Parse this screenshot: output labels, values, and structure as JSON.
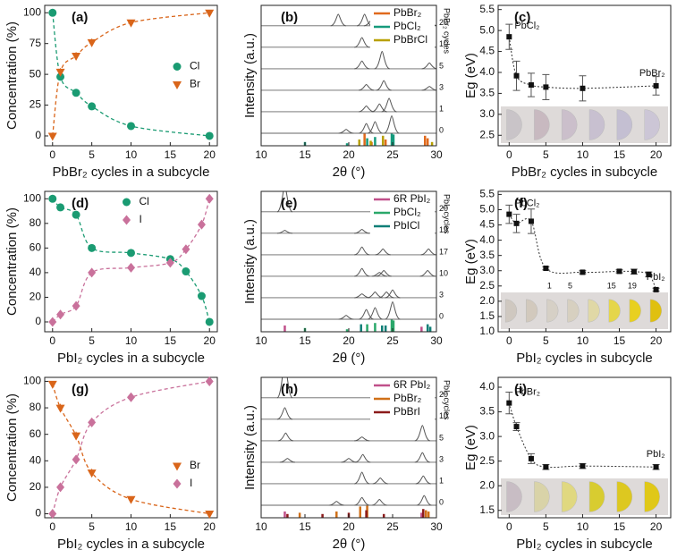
{
  "chart_data": [
    {
      "type": "scatter",
      "label": "(a)",
      "xlabel": "PbBr₂ cycles in a subcycle",
      "ylabel": "Concentration (%)",
      "x": [
        0,
        1,
        3,
        5,
        10,
        20
      ],
      "xlim": [
        -1,
        21
      ],
      "xticks": [
        0,
        5,
        10,
        15,
        20
      ],
      "ylim": [
        -8,
        106
      ],
      "yticks": [
        0,
        25,
        50,
        75,
        100
      ],
      "legend": "center right",
      "series": [
        {
          "name": "Cl",
          "color": "#1a9b72",
          "marker": "circle",
          "values": [
            100,
            48,
            35,
            24,
            8,
            0
          ],
          "errors": [
            1,
            3,
            3,
            3,
            2,
            1
          ]
        },
        {
          "name": "Br",
          "color": "#d9651a",
          "marker": "triangle-down",
          "values": [
            0,
            52,
            65,
            76,
            92,
            100
          ],
          "errors": [
            1,
            3,
            3,
            3,
            2,
            1
          ]
        }
      ]
    },
    {
      "type": "xrd",
      "label": "(b)",
      "xlabel": "2θ (°)",
      "ylabel": "Intensity (a.u.)",
      "xlim": [
        10,
        30
      ],
      "xticks": [
        10,
        15,
        20,
        25,
        30
      ],
      "traces_label": "PbBr₂ cycles",
      "references": [
        {
          "name": "PbBr₂",
          "color": "#e0691c",
          "x": [
            21.8,
            22.6,
            24.2,
            28.7,
            29.0
          ],
          "values": [
            1.0,
            0.3,
            0.5,
            0.8,
            0.6
          ]
        },
        {
          "name": "PbCl₂",
          "color": "#159a7c",
          "x": [
            15.0,
            19.8,
            22.1,
            23.0,
            24.9,
            25.1
          ],
          "values": [
            0.3,
            0.2,
            0.6,
            0.7,
            1.0,
            0.9
          ]
        },
        {
          "name": "PbBrCl",
          "color": "#b8a000",
          "x": [
            21.2,
            22.5,
            23.9,
            29.5
          ],
          "values": [
            0.5,
            0.4,
            0.8,
            0.3
          ]
        }
      ],
      "traces": [
        {
          "label": "20",
          "x": [
            18.8,
            21.8,
            22.6,
            24.2,
            28.8,
            29.2
          ],
          "values": [
            0.6,
            0.6,
            0.3,
            0.2,
            0.3,
            0.3
          ]
        },
        {
          "label": "10",
          "x": [
            21.5,
            23.9,
            29.0
          ],
          "values": [
            0.5,
            1.0,
            0.3
          ]
        },
        {
          "label": "5",
          "x": [
            21.5,
            23.8,
            29.2
          ],
          "values": [
            0.4,
            0.9,
            0.3
          ]
        },
        {
          "label": "3",
          "x": [
            22.0,
            24.0,
            29.2
          ],
          "values": [
            0.3,
            0.5,
            0.2
          ]
        },
        {
          "label": "1",
          "x": [
            22.0,
            23.5,
            24.6
          ],
          "values": [
            0.3,
            0.4,
            0.7
          ]
        },
        {
          "label": "0",
          "x": [
            19.7,
            22.0,
            23.0,
            24.9
          ],
          "values": [
            0.2,
            0.5,
            0.6,
            0.9
          ]
        }
      ]
    },
    {
      "type": "errorbar",
      "label": "(c)",
      "xlabel": "PbBr₂ cycles in subcycle",
      "ylabel": "Eg (eV)",
      "x": [
        0,
        1,
        3,
        5,
        10,
        20
      ],
      "values": [
        4.85,
        3.92,
        3.7,
        3.65,
        3.62,
        3.68
      ],
      "errors": [
        0.3,
        0.35,
        0.28,
        0.3,
        0.3,
        0.22
      ],
      "xlim": [
        -1.5,
        22
      ],
      "xticks": [
        0,
        5,
        10,
        15,
        20
      ],
      "ylim": [
        2.25,
        5.6
      ],
      "yticks": [
        2.5,
        {
          "value": 3,
          "label": "3.0"
        },
        3.5,
        {
          "value": 4,
          "label": "4.0"
        },
        4.5,
        {
          "value": 5,
          "label": "5.0"
        },
        5.5
      ],
      "annotations": [
        "PbCl₂",
        "PbBr₂"
      ],
      "swatches": [
        "#c9c4c8",
        "#c8b9c0",
        "#cbbfcb",
        "#c8c0d0",
        "#c4bfd2",
        "#ccc6d6"
      ],
      "swatch_labels": [
        null,
        null,
        null,
        null,
        null,
        null
      ]
    },
    {
      "type": "scatter",
      "label": "(d)",
      "xlabel": "PbI₂ cycles in a subcycle",
      "ylabel": "Concentration (%)",
      "x": [
        0,
        1,
        3,
        5,
        10,
        15,
        17,
        19,
        20
      ],
      "xlim": [
        -1,
        21
      ],
      "xticks": [
        0,
        5,
        10,
        15,
        20
      ],
      "ylim": [
        -8,
        106
      ],
      "yticks": [
        0,
        20,
        40,
        60,
        80,
        100
      ],
      "legend": "upper center",
      "series": [
        {
          "name": "Cl",
          "color": "#1a9b72",
          "marker": "circle",
          "values": [
            100,
            93,
            87,
            60,
            56,
            51,
            41,
            21,
            0
          ],
          "errors": [
            1,
            3,
            3,
            2,
            2,
            2,
            3,
            3,
            1
          ]
        },
        {
          "name": "I",
          "color": "#c9719b",
          "marker": "diamond",
          "values": [
            0,
            6,
            13,
            40,
            44,
            48,
            59,
            79,
            100
          ],
          "errors": [
            1,
            3,
            3,
            2,
            2,
            2,
            3,
            3,
            1
          ]
        }
      ]
    },
    {
      "type": "xrd",
      "label": "(e)",
      "xlabel": "2θ (°)",
      "ylabel": "Intensity (a.u.)",
      "xlim": [
        10,
        30
      ],
      "xticks": [
        10,
        15,
        20,
        25,
        30
      ],
      "traces_label": "PbI₂ cycles",
      "references": [
        {
          "name": "6R PbI₂",
          "color": "#c0508a",
          "x": [
            12.7,
            28.3
          ],
          "values": [
            0.5,
            0.4
          ]
        },
        {
          "name": "PbCl₂",
          "color": "#2aa86a",
          "x": [
            15.0,
            19.8,
            22.1,
            23.0,
            24.9,
            25.1
          ],
          "values": [
            0.3,
            0.2,
            0.6,
            0.7,
            1.0,
            0.9
          ]
        },
        {
          "name": "PbICl",
          "color": "#0f7f77",
          "x": [
            21.4,
            23.8,
            24.2,
            29.0,
            29.3
          ],
          "values": [
            0.6,
            0.5,
            0.5,
            0.6,
            0.4
          ]
        }
      ],
      "traces": [
        {
          "label": "20",
          "x": [
            12.7
          ],
          "values": [
            1.4
          ]
        },
        {
          "label": "19",
          "x": [
            12.7,
            21.5,
            24.0
          ],
          "values": [
            0.15,
            0.2,
            0.15
          ]
        },
        {
          "label": "17",
          "x": [
            21.5,
            23.9,
            29.1
          ],
          "values": [
            0.4,
            0.3,
            0.3
          ]
        },
        {
          "label": "10",
          "x": [
            21.5,
            23.5,
            24.0,
            29.0
          ],
          "values": [
            0.4,
            0.2,
            0.3,
            0.3
          ]
        },
        {
          "label": "3",
          "x": [
            21.5,
            23.0,
            24.3,
            25.0
          ],
          "values": [
            0.2,
            0.3,
            0.3,
            0.4
          ]
        },
        {
          "label": "0",
          "x": [
            19.7,
            22.0,
            23.0,
            25.0
          ],
          "values": [
            0.2,
            0.5,
            0.6,
            0.9
          ]
        }
      ]
    },
    {
      "type": "errorbar",
      "label": "(f)",
      "xlabel": "PbI₂ cycles in subcycle",
      "ylabel": "Eg (eV)",
      "x": [
        0,
        1,
        3,
        5,
        10,
        15,
        17,
        19,
        20
      ],
      "values": [
        4.85,
        4.55,
        4.62,
        3.08,
        2.95,
        2.98,
        2.97,
        2.88,
        2.38
      ],
      "errors": [
        0.3,
        0.3,
        0.4,
        0.05,
        0.05,
        0.05,
        0.08,
        0.08,
        0.05
      ],
      "xlim": [
        -1.5,
        22
      ],
      "xticks": [
        0,
        5,
        10,
        15,
        20
      ],
      "ylim": [
        1.0,
        5.6
      ],
      "yticks": [
        {
          "value": 1,
          "label": "1.0"
        },
        1.5,
        {
          "value": 2,
          "label": "2.0"
        },
        2.5,
        {
          "value": 3,
          "label": "3.0"
        },
        3.5,
        {
          "value": 4,
          "label": "4.0"
        },
        4.5,
        {
          "value": 5,
          "label": "5.0"
        },
        5.5
      ],
      "annotations": [
        "PbCl₂",
        "PbI₂"
      ],
      "swatches": [
        "#cfc8c0",
        "#d2c9bd",
        "#d6d0c6",
        "#d7d0c0",
        "#e0d8a6",
        "#e5d64a",
        "#e8d020",
        "#e0c010"
      ],
      "swatch_labels": [
        null,
        null,
        "1",
        "5",
        null,
        "15",
        "19",
        null
      ]
    },
    {
      "type": "scatter",
      "label": "(g)",
      "xlabel": "PbI₂ cycles in a subcycle",
      "ylabel": "Concentration (%)",
      "x": [
        0,
        1,
        3,
        5,
        10,
        20
      ],
      "xlim": [
        -1,
        21
      ],
      "xticks": [
        0,
        5,
        10,
        15,
        20
      ],
      "ylim": [
        -3,
        103
      ],
      "yticks": [
        0,
        20,
        40,
        60,
        80,
        100
      ],
      "legend": "lower right",
      "series": [
        {
          "name": "Br",
          "color": "#d9651a",
          "marker": "triangle-down",
          "values": [
            98,
            80,
            59,
            31,
            11,
            0
          ],
          "errors": [
            1,
            3,
            3,
            3,
            2,
            1
          ]
        },
        {
          "name": "I",
          "color": "#c9719b",
          "marker": "diamond",
          "values": [
            0,
            20,
            41,
            69,
            88,
            100
          ],
          "errors": [
            1,
            3,
            3,
            3,
            2,
            1
          ]
        }
      ]
    },
    {
      "type": "xrd",
      "label": "(h)",
      "xlabel": "2θ (°)",
      "ylabel": "Intensity (a.u.)",
      "xlim": [
        10,
        30
      ],
      "xticks": [
        10,
        15,
        20,
        25,
        30
      ],
      "traces_label": "PbI₂ cycles",
      "references": [
        {
          "name": "6R PbI₂",
          "color": "#c0508a",
          "x": [
            12.7,
            28.3
          ],
          "values": [
            0.5,
            0.4
          ]
        },
        {
          "name": "PbBr₂",
          "color": "#d07018",
          "x": [
            14.4,
            18.6,
            21.3,
            22.1,
            28.8,
            29.1
          ],
          "values": [
            0.4,
            0.5,
            0.9,
            1.0,
            0.6,
            0.5
          ]
        },
        {
          "name": "PbBrI",
          "color": "#8b1a1a",
          "x": [
            13.0,
            17.0,
            20.0,
            22.0,
            24.0,
            28.5
          ],
          "values": [
            0.3,
            0.3,
            0.4,
            0.6,
            0.3,
            0.7
          ]
        }
      ],
      "traces": [
        {
          "label": "20",
          "x": [
            12.7
          ],
          "values": [
            2.0
          ]
        },
        {
          "label": "10",
          "x": [
            12.7,
            28.3
          ],
          "values": [
            0.6,
            0.4
          ]
        },
        {
          "label": "5",
          "x": [
            12.8,
            21.5,
            28.4
          ],
          "values": [
            0.4,
            0.2,
            0.8
          ]
        },
        {
          "label": "3",
          "x": [
            13.0,
            20.0,
            21.6,
            28.4
          ],
          "values": [
            0.2,
            0.2,
            0.4,
            0.5
          ]
        },
        {
          "label": "1",
          "x": [
            21.5,
            23.6,
            28.5
          ],
          "values": [
            0.6,
            0.3,
            0.4
          ]
        },
        {
          "label": "0",
          "x": [
            18.6,
            21.5,
            23.5,
            28.6
          ],
          "values": [
            0.2,
            0.4,
            0.3,
            0.5
          ]
        }
      ]
    },
    {
      "type": "errorbar",
      "label": "(i)",
      "xlabel": "PbI₂ cycles in subcycle",
      "ylabel": "Eg (eV)",
      "x": [
        0,
        1,
        3,
        5,
        10,
        20
      ],
      "values": [
        3.68,
        3.2,
        2.55,
        2.38,
        2.4,
        2.38
      ],
      "errors": [
        0.22,
        0.08,
        0.1,
        0.05,
        0.05,
        0.05
      ],
      "xlim": [
        -1.5,
        22
      ],
      "xticks": [
        0,
        5,
        10,
        15,
        20
      ],
      "ylim": [
        1.35,
        4.2
      ],
      "yticks": [
        1.5,
        {
          "value": 2,
          "label": "2.0"
        },
        2.5,
        {
          "value": 3,
          "label": "3.0"
        },
        3.5,
        {
          "value": 4,
          "label": "4.0"
        }
      ],
      "annotations": [
        "PbBr₂",
        "PbI₂"
      ],
      "swatches": [
        "#c8bdc4",
        "#d9d3a8",
        "#e0d880",
        "#d8cc30",
        "#ddc820",
        "#e0c818"
      ],
      "swatch_labels": [
        null,
        null,
        null,
        null,
        null,
        null
      ]
    }
  ]
}
